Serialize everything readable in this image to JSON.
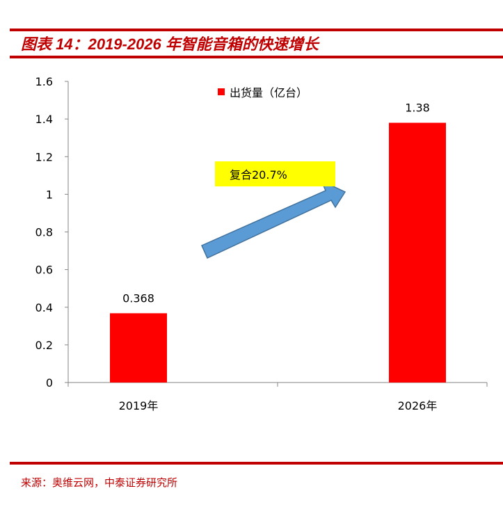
{
  "title": "图表 14：2019-2026 年智能音箱的快速增长",
  "source": "来源：奥维云网，中泰证券研究所",
  "chart_data": {
    "type": "bar",
    "categories": [
      "2019年",
      "2026年"
    ],
    "series": [
      {
        "name": "出货量（亿台）",
        "values": [
          0.368,
          1.38
        ],
        "color": "#ff0000"
      }
    ],
    "data_labels": [
      "0.368",
      "1.38"
    ],
    "ylim": [
      0,
      1.6
    ],
    "yticks": [
      "0",
      "0.2",
      "0.4",
      "0.6",
      "0.8",
      "1",
      "1.2",
      "1.4",
      "1.6"
    ],
    "legend": "top-center",
    "annotation": {
      "text": "复合20.7%",
      "background": "#ffff00",
      "arrow_color": "#5b9bd5"
    },
    "grid": false
  }
}
